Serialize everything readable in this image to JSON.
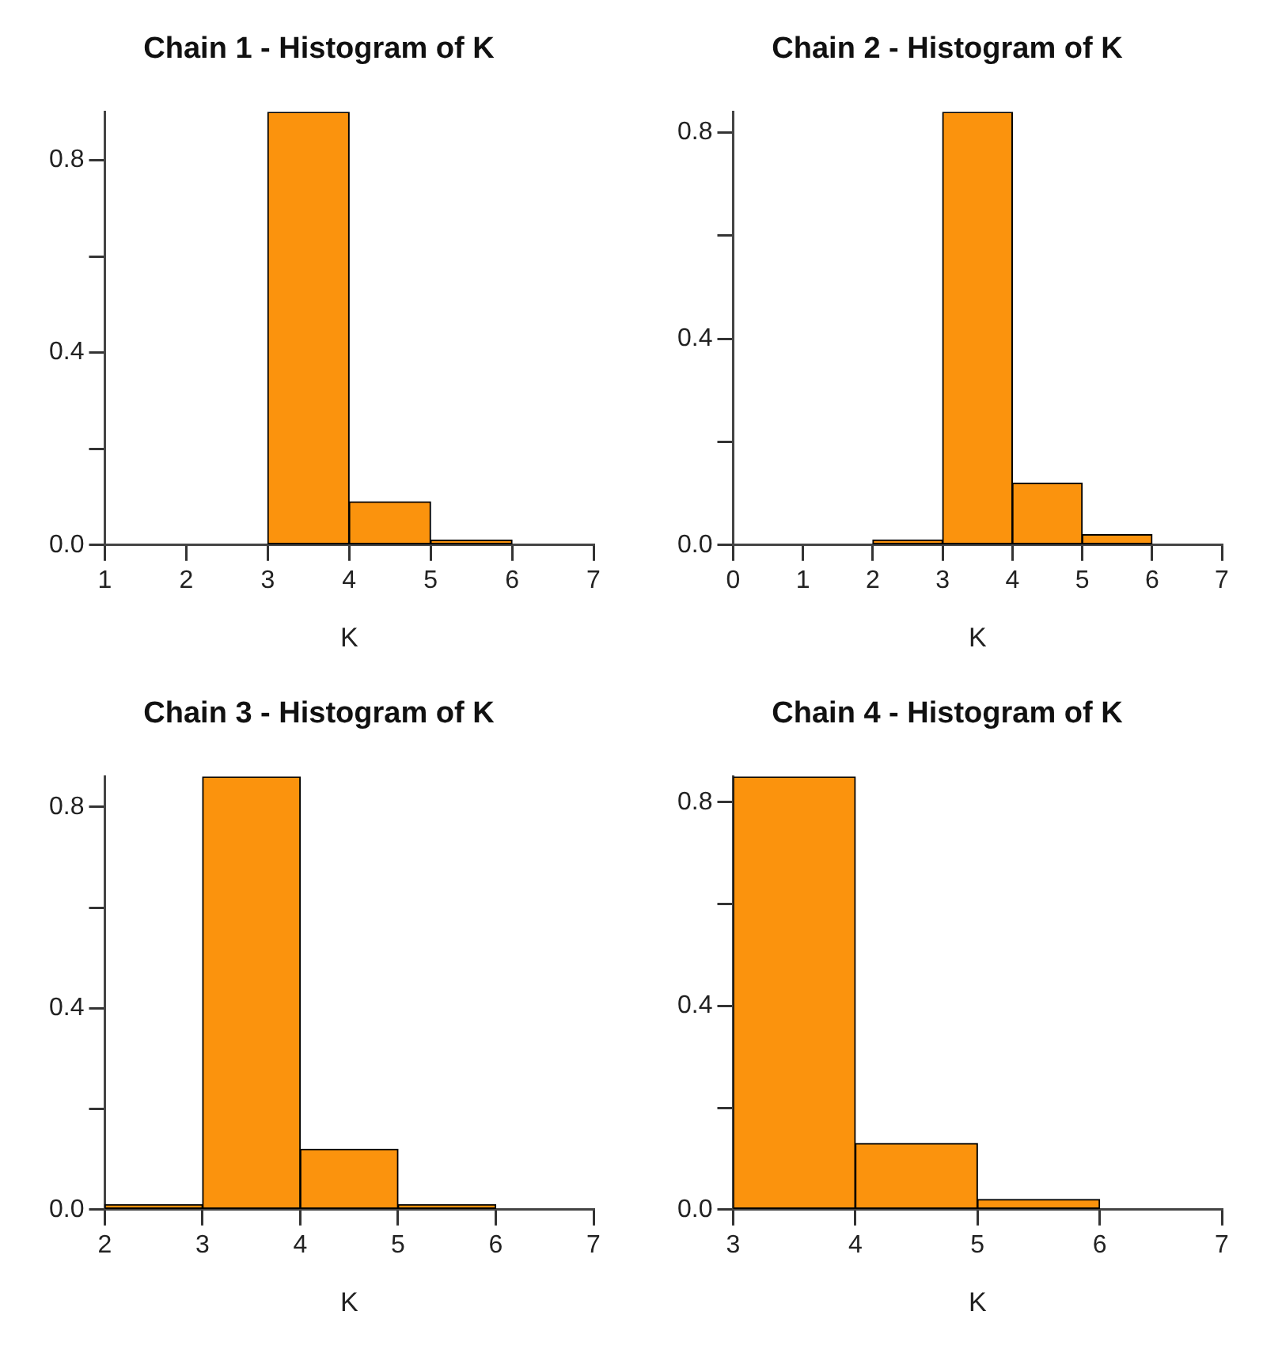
{
  "chart_data": [
    {
      "type": "histogram",
      "title": "Chain 1 - Histogram of K",
      "xlabel": "K",
      "bins": [
        1,
        2,
        3,
        4,
        5,
        6,
        7
      ],
      "values": [
        0,
        0,
        0.9,
        0.09,
        0.01,
        0
      ],
      "color": "#fb930d",
      "xlim": [
        1,
        7
      ],
      "xticks": [
        1,
        2,
        3,
        4,
        5,
        6,
        7
      ],
      "ylim": [
        0,
        0.9
      ],
      "yticks": [
        {
          "value": 0,
          "label": "0.0"
        },
        {
          "value": 0.2,
          "label": null
        },
        {
          "value": 0.4,
          "label": "0.4"
        },
        {
          "value": 0.6,
          "label": null
        },
        {
          "value": 0.8,
          "label": "0.8"
        }
      ]
    },
    {
      "type": "histogram",
      "title": "Chain 2 - Histogram of K",
      "xlabel": "K",
      "bins": [
        0,
        1,
        2,
        3,
        4,
        5,
        6,
        7
      ],
      "values": [
        0,
        0,
        0.01,
        0.84,
        0.12,
        0.02,
        0
      ],
      "color": "#fb930d",
      "xlim": [
        0,
        7
      ],
      "xticks": [
        0,
        1,
        2,
        3,
        4,
        5,
        6,
        7
      ],
      "ylim": [
        0,
        0.84
      ],
      "yticks": [
        {
          "value": 0,
          "label": "0.0"
        },
        {
          "value": 0.2,
          "label": null
        },
        {
          "value": 0.4,
          "label": "0.4"
        },
        {
          "value": 0.6,
          "label": null
        },
        {
          "value": 0.8,
          "label": "0.8"
        }
      ]
    },
    {
      "type": "histogram",
      "title": "Chain 3 - Histogram of K",
      "xlabel": "K",
      "bins": [
        2,
        3,
        4,
        5,
        6,
        7
      ],
      "values": [
        0.01,
        0.86,
        0.12,
        0.01,
        0
      ],
      "color": "#fb930d",
      "xlim": [
        2,
        7
      ],
      "xticks": [
        2,
        3,
        4,
        5,
        6,
        7
      ],
      "ylim": [
        0,
        0.86
      ],
      "yticks": [
        {
          "value": 0,
          "label": "0.0"
        },
        {
          "value": 0.2,
          "label": null
        },
        {
          "value": 0.4,
          "label": "0.4"
        },
        {
          "value": 0.6,
          "label": null
        },
        {
          "value": 0.8,
          "label": "0.8"
        }
      ]
    },
    {
      "type": "histogram",
      "title": "Chain 4 - Histogram of K",
      "xlabel": "K",
      "bins": [
        3,
        4,
        5,
        6,
        7
      ],
      "values": [
        0.85,
        0.13,
        0.02,
        0
      ],
      "color": "#fb930d",
      "xlim": [
        3,
        7
      ],
      "xticks": [
        3,
        4,
        5,
        6,
        7
      ],
      "ylim": [
        0,
        0.85
      ],
      "yticks": [
        {
          "value": 0,
          "label": "0.0"
        },
        {
          "value": 0.2,
          "label": null
        },
        {
          "value": 0.4,
          "label": "0.4"
        },
        {
          "value": 0.6,
          "label": null
        },
        {
          "value": 0.8,
          "label": "0.8"
        }
      ]
    }
  ]
}
